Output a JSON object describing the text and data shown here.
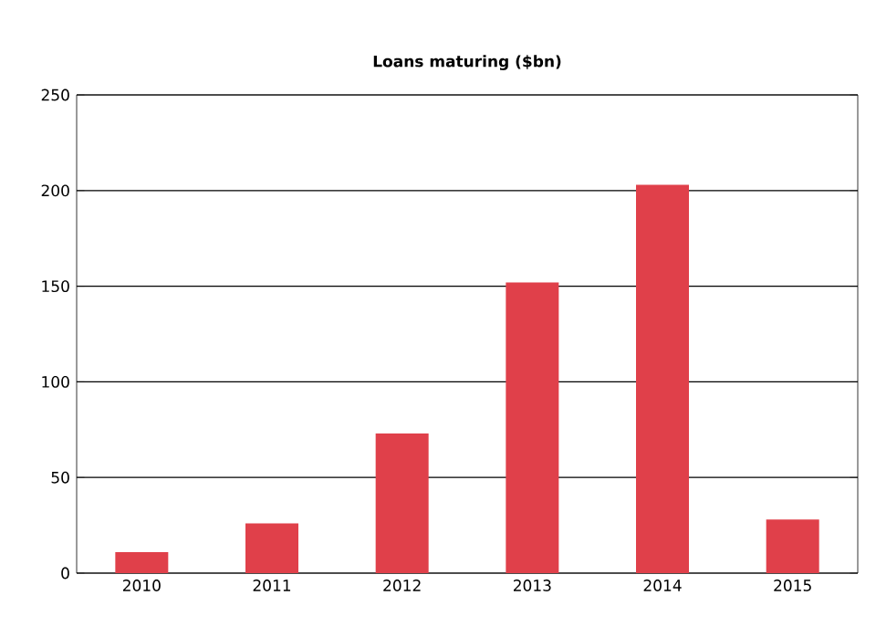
{
  "chart_data": {
    "type": "bar",
    "title": "Loans maturing ($bn)",
    "categories": [
      "2010",
      "2011",
      "2012",
      "2013",
      "2014",
      "2015"
    ],
    "values": [
      11,
      26,
      73,
      152,
      203,
      28
    ],
    "color": "#e0404a",
    "ylim": [
      0,
      250
    ],
    "yticks": [
      0,
      50,
      100,
      150,
      200,
      250
    ],
    "grid": "y"
  }
}
